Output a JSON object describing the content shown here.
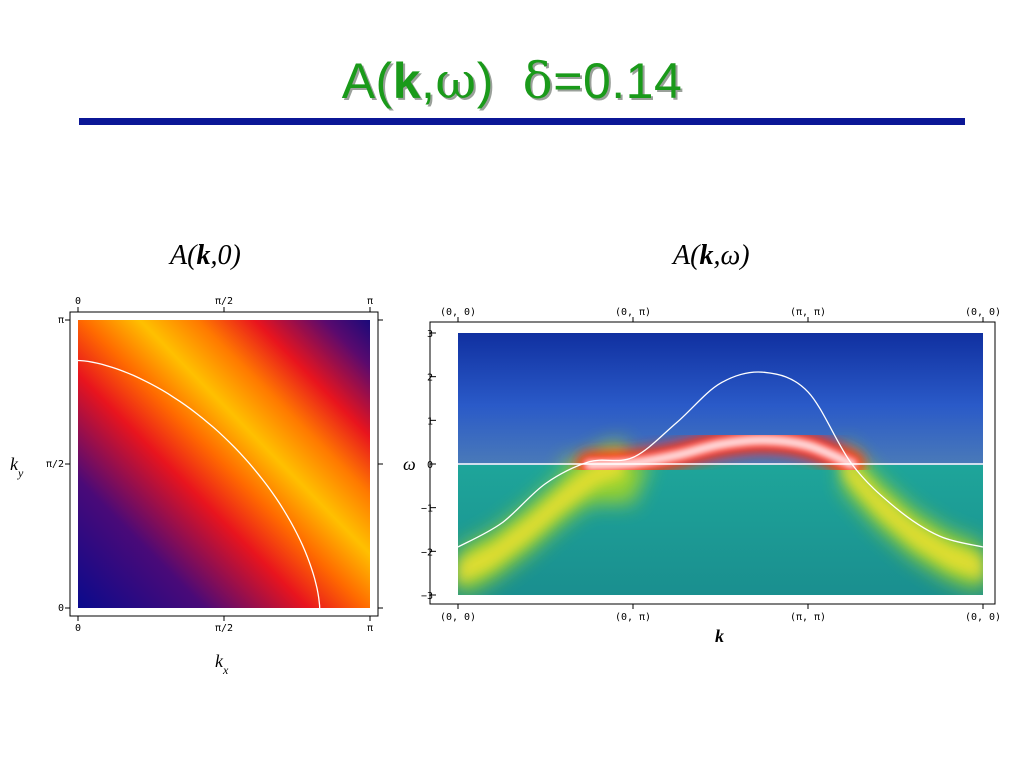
{
  "slide": {
    "title_prefix": "A(",
    "title_k": "k",
    "title_mid": ",",
    "title_omega": "ω",
    "title_close": ")",
    "title_delta": "δ",
    "title_value": "=0.14",
    "title_color": "#1a9a1a",
    "rule_color": "#0b1796"
  },
  "chart_data": [
    {
      "type": "heatmap",
      "panel_label": {
        "prefix": "A(",
        "bold": "k",
        "suffix": ",0)"
      },
      "xlabel": {
        "base": "k",
        "sub": "x"
      },
      "ylabel": {
        "base": "k",
        "sub": "y"
      },
      "xlim": [
        0,
        3.1416
      ],
      "ylim": [
        0,
        3.1416
      ],
      "x_ticks_bottom": [
        "0",
        "π/2",
        "π"
      ],
      "x_ticks_top": [
        "0",
        "π/2",
        "π"
      ],
      "y_ticks": [
        "0",
        "π/2",
        "π"
      ],
      "colormap": [
        "#0a0a8c",
        "#5a0a6e",
        "#e8141e",
        "#ff6a00",
        "#ffb000",
        "#ffd000"
      ],
      "fermi_surface_color": "#ffffff",
      "fermi_surface_ky_at_kx0": 2.7,
      "fermi_surface_kx_at_ky0": 2.6
    },
    {
      "type": "heatmap",
      "panel_label": {
        "prefix": "A(",
        "bold": "k",
        "suffix": ",ω)"
      },
      "xlabel": "k",
      "ylabel": "ω",
      "ylim": [
        -3,
        3
      ],
      "x_ticks_top": [
        "(0, 0)",
        "(0, π)",
        "(π, π)",
        "(0, 0)"
      ],
      "x_ticks_bottom": [
        "(0, 0)",
        "(0, π)",
        "(π, π)",
        "(0, 0)"
      ],
      "y_ticks": [
        "3",
        "2",
        "1",
        "0",
        "−1",
        "−2",
        "−3"
      ],
      "zero_line": 0,
      "bare_band": {
        "x": [
          0,
          0.25,
          0.5,
          0.75,
          1.0,
          1.25,
          1.5,
          1.75,
          2.0,
          2.25,
          2.5,
          2.75,
          3.0
        ],
        "omega": [
          -1.9,
          -1.35,
          -0.45,
          0.05,
          0.15,
          0.95,
          1.85,
          2.1,
          1.65,
          0.0,
          -1.0,
          -1.65,
          -1.9
        ]
      },
      "quasiparticle_band": {
        "x": [
          0.75,
          1.0,
          1.25,
          1.5,
          1.75,
          2.0,
          2.25
        ],
        "omega": [
          -0.02,
          0.02,
          0.2,
          0.45,
          0.55,
          0.42,
          0.0
        ]
      },
      "background_color": "#1a9a95"
    }
  ]
}
